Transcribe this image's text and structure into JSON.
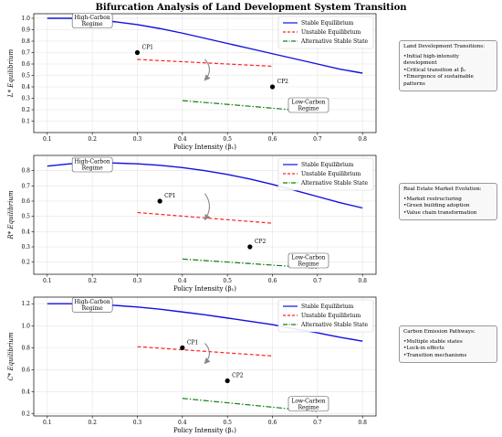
{
  "figure": {
    "title": "Bifurcation Analysis of Land Development System Transition",
    "colors": {
      "stable": "#1010e0",
      "unstable": "#ff2020",
      "alternative": "#108010",
      "point": "#000000",
      "arrow": "#888888"
    }
  },
  "side_boxes": [
    {
      "title": "Land Development Transitions:",
      "items": [
        "Initial high-intensity development",
        "Critical transition at β₁",
        "Emergence of sustainable patterns"
      ]
    },
    {
      "title": "Real Estate Market Evolution:",
      "items": [
        "Market restructuring",
        "Green building adoption",
        "Value chain transformation"
      ]
    },
    {
      "title": "Carbon Emission Pathways:",
      "items": [
        "Multiple stable states",
        "Lock-in effects",
        "Transition mechanisms"
      ]
    }
  ],
  "chart_data": [
    {
      "type": "line",
      "xlabel": "Policy Intensity (β₁)",
      "ylabel": "L* Equilibrium",
      "xlim": [
        0.07,
        0.83
      ],
      "ylim": [
        0.0,
        1.04
      ],
      "xticks": [
        "0.1",
        "0.2",
        "0.3",
        "0.4",
        "0.5",
        "0.6",
        "0.7",
        "0.8"
      ],
      "yticks": [
        "0.1",
        "0.2",
        "0.3",
        "0.4",
        "0.5",
        "0.6",
        "0.7",
        "0.8",
        "0.9",
        "1.0"
      ],
      "legend": {
        "placement": "top-right",
        "entries": [
          "Stable Equilibrium",
          "Unstable Equilibrium",
          "Alternative Stable State"
        ]
      },
      "series": [
        {
          "name": "Stable Equilibrium",
          "style": "solid",
          "x": [
            0.1,
            0.15,
            0.2,
            0.25,
            0.3,
            0.35,
            0.4,
            0.45,
            0.5,
            0.55,
            0.6,
            0.65,
            0.7,
            0.75,
            0.8
          ],
          "y": [
            1.0,
            1.0,
            0.99,
            0.97,
            0.945,
            0.91,
            0.87,
            0.825,
            0.78,
            0.735,
            0.69,
            0.645,
            0.6,
            0.555,
            0.52
          ]
        },
        {
          "name": "Unstable Equilibrium",
          "style": "dashed",
          "x": [
            0.3,
            0.6
          ],
          "y": [
            0.64,
            0.58
          ]
        },
        {
          "name": "Alternative Stable State",
          "style": "dashdot",
          "x": [
            0.4,
            0.7
          ],
          "y": [
            0.28,
            0.18
          ]
        }
      ],
      "points": [
        {
          "label": "CP1",
          "x": 0.3,
          "y": 0.7
        },
        {
          "label": "CP2",
          "x": 0.6,
          "y": 0.4
        }
      ],
      "annotations": [
        {
          "text": [
            "High-Carbon",
            "Regime"
          ],
          "x": 0.2,
          "y": 0.98
        },
        {
          "text": [
            "Low-Carbon",
            "Regime"
          ],
          "x": 0.68,
          "y": 0.24
        }
      ],
      "arrow": {
        "from": [
          0.45,
          0.64
        ],
        "to": [
          0.45,
          0.46
        ]
      }
    },
    {
      "type": "line",
      "xlabel": "Policy Intensity (β₁)",
      "ylabel": "R* Equilibrium",
      "xlim": [
        0.07,
        0.83
      ],
      "ylim": [
        0.12,
        0.9
      ],
      "xticks": [
        "0.1",
        "0.2",
        "0.3",
        "0.4",
        "0.5",
        "0.6",
        "0.7",
        "0.8"
      ],
      "yticks": [
        "0.2",
        "0.3",
        "0.4",
        "0.5",
        "0.6",
        "0.7",
        "0.8"
      ],
      "legend": {
        "placement": "top-right",
        "entries": [
          "Stable Equilibrium",
          "Unstable Equilibrium",
          "Alternative Stable State"
        ]
      },
      "series": [
        {
          "name": "Stable Equilibrium",
          "style": "solid",
          "x": [
            0.1,
            0.15,
            0.2,
            0.25,
            0.3,
            0.35,
            0.4,
            0.45,
            0.5,
            0.55,
            0.6,
            0.65,
            0.7,
            0.75,
            0.8
          ],
          "y": [
            0.83,
            0.845,
            0.85,
            0.85,
            0.845,
            0.835,
            0.82,
            0.8,
            0.775,
            0.745,
            0.71,
            0.67,
            0.63,
            0.59,
            0.555
          ]
        },
        {
          "name": "Unstable Equilibrium",
          "style": "dashed",
          "x": [
            0.3,
            0.6
          ],
          "y": [
            0.525,
            0.455
          ]
        },
        {
          "name": "Alternative Stable State",
          "style": "dashdot",
          "x": [
            0.4,
            0.7
          ],
          "y": [
            0.22,
            0.16
          ]
        }
      ],
      "points": [
        {
          "label": "CP1",
          "x": 0.35,
          "y": 0.6
        },
        {
          "label": "CP2",
          "x": 0.55,
          "y": 0.3
        }
      ],
      "annotations": [
        {
          "text": [
            "High-Carbon",
            "Regime"
          ],
          "x": 0.2,
          "y": 0.84
        },
        {
          "text": [
            "Low-Carbon",
            "Regime"
          ],
          "x": 0.68,
          "y": 0.21
        }
      ],
      "arrow": {
        "from": [
          0.45,
          0.65
        ],
        "to": [
          0.45,
          0.48
        ]
      }
    },
    {
      "type": "line",
      "xlabel": "Policy Intensity (β₁)",
      "ylabel": "C* Equilibrium",
      "xlim": [
        0.07,
        0.83
      ],
      "ylim": [
        0.18,
        1.26
      ],
      "xticks": [
        "0.1",
        "0.2",
        "0.3",
        "0.4",
        "0.5",
        "0.6",
        "0.7",
        "0.8"
      ],
      "yticks": [
        "0.2",
        "0.4",
        "0.6",
        "0.8",
        "1.0",
        "1.2"
      ],
      "legend": {
        "placement": "top-right",
        "entries": [
          "Stable Equilibrium",
          "Unstable Equilibrium",
          "Alternative Stable State"
        ]
      },
      "series": [
        {
          "name": "Stable Equilibrium",
          "style": "solid",
          "x": [
            0.1,
            0.15,
            0.2,
            0.25,
            0.3,
            0.35,
            0.4,
            0.45,
            0.5,
            0.55,
            0.6,
            0.65,
            0.7,
            0.75,
            0.8
          ],
          "y": [
            1.2,
            1.2,
            1.195,
            1.185,
            1.17,
            1.15,
            1.125,
            1.1,
            1.07,
            1.04,
            1.01,
            0.97,
            0.935,
            0.895,
            0.86
          ]
        },
        {
          "name": "Unstable Equilibrium",
          "style": "dashed",
          "x": [
            0.3,
            0.6
          ],
          "y": [
            0.81,
            0.725
          ]
        },
        {
          "name": "Alternative Stable State",
          "style": "dashdot",
          "x": [
            0.4,
            0.7
          ],
          "y": [
            0.34,
            0.22
          ]
        }
      ],
      "points": [
        {
          "label": "CP1",
          "x": 0.4,
          "y": 0.8
        },
        {
          "label": "CP2",
          "x": 0.5,
          "y": 0.5
        }
      ],
      "annotations": [
        {
          "text": [
            "High-Carbon",
            "Regime"
          ],
          "x": 0.2,
          "y": 1.19
        },
        {
          "text": [
            "Low-Carbon",
            "Regime"
          ],
          "x": 0.68,
          "y": 0.29
        }
      ],
      "arrow": {
        "from": [
          0.45,
          0.84
        ],
        "to": [
          0.45,
          0.66
        ]
      }
    }
  ]
}
